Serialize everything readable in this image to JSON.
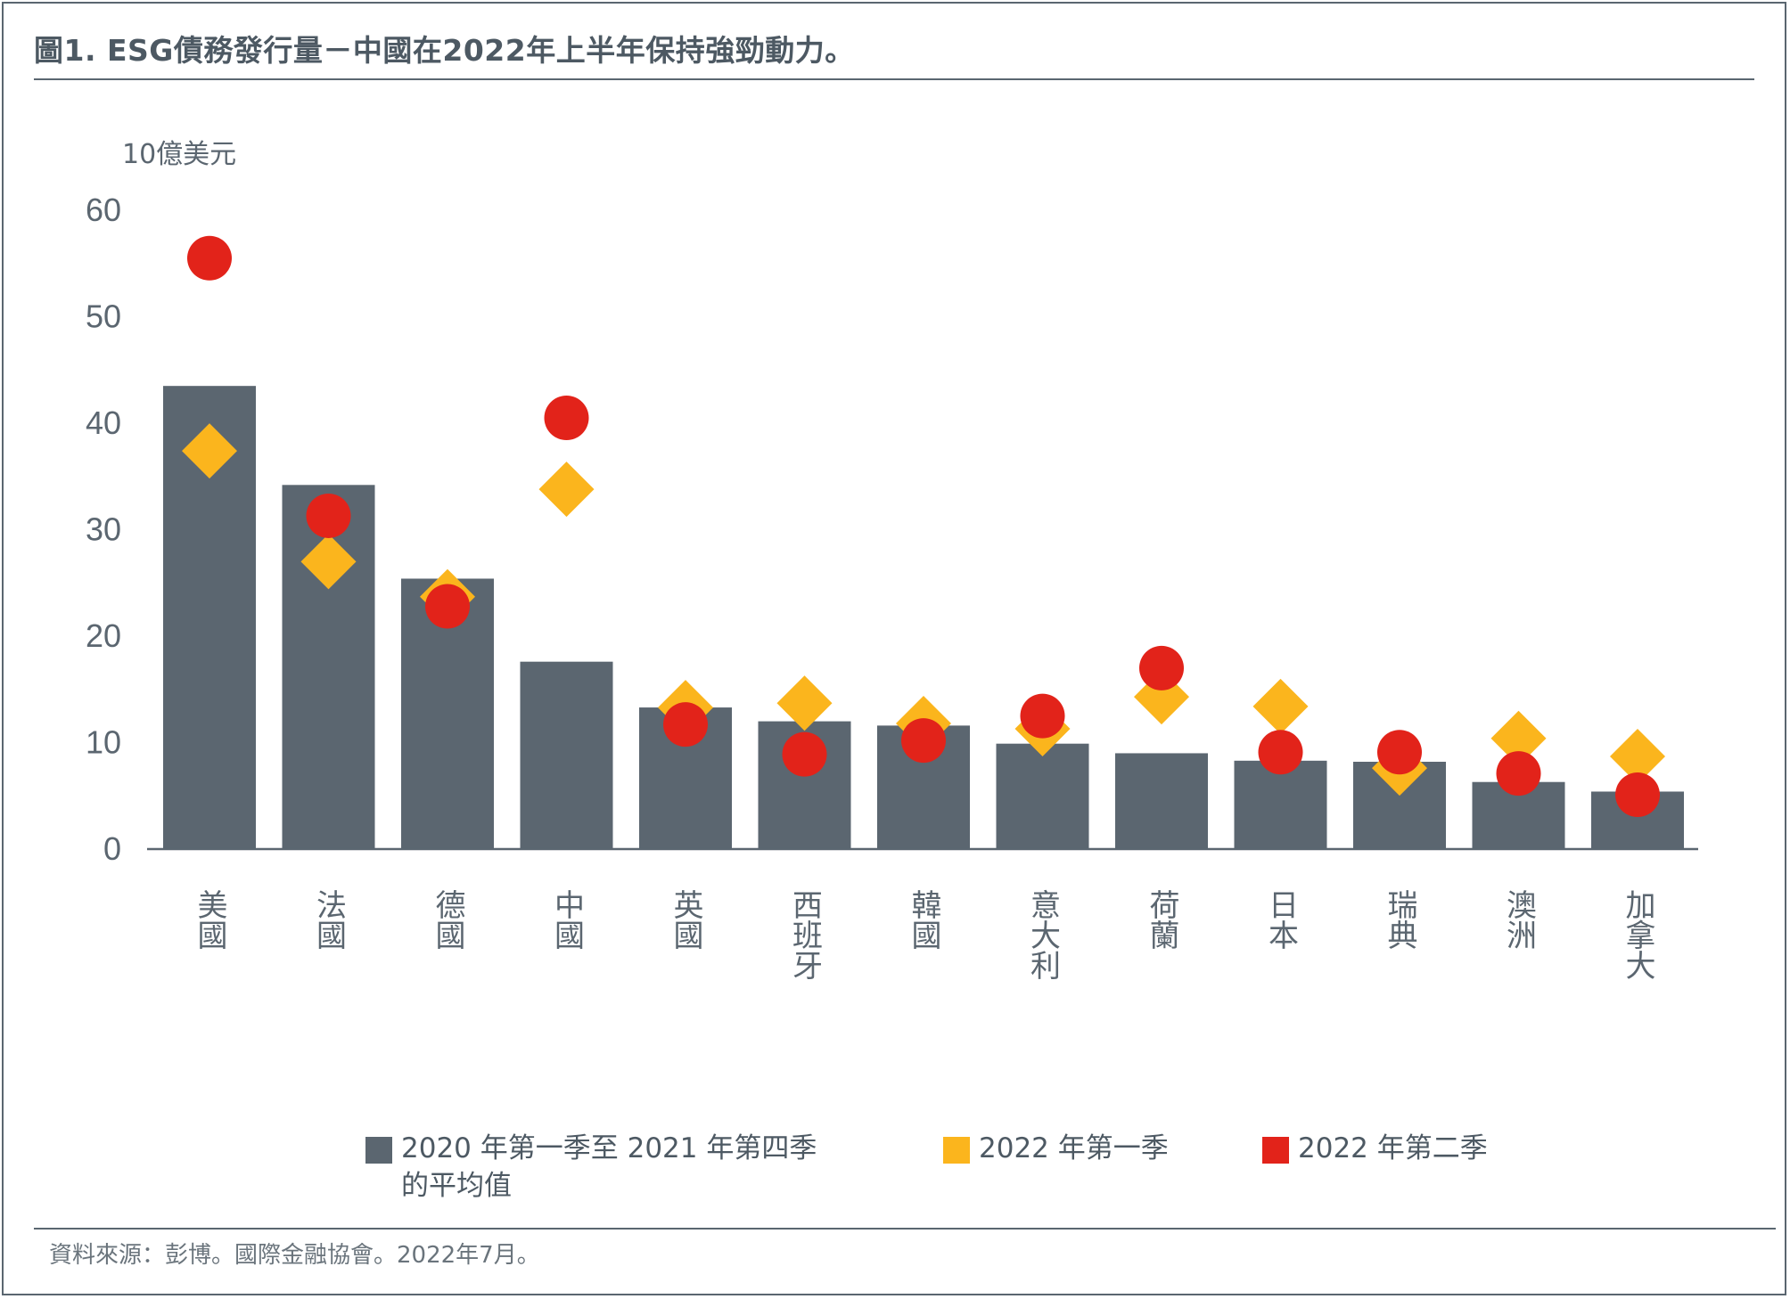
{
  "title": "圖1. ESG債務發行量－中國在2022年上半年保持強勁動力。",
  "source": "資料來源：彭博。國際金融協會。2022年7月。",
  "colors": {
    "bar": "#5b6670",
    "q1_2022": "#fbb51d",
    "q2_2022": "#e2231a",
    "axis": "#5b6670",
    "text": "#5b6670"
  },
  "legend": {
    "bar_label": "2020 年第一季至 2021 年第四季\n的平均值",
    "q1_label": "2022 年第一季",
    "q2_label": "2022 年第二季"
  },
  "chart_data": {
    "type": "bar",
    "ylabel": "10億美元",
    "ylim": [
      0,
      60
    ],
    "yticks": [
      0,
      10,
      20,
      30,
      40,
      50,
      60
    ],
    "grid": false,
    "legend_position": "bottom",
    "categories": [
      "美國",
      "法國",
      "德國",
      "中國",
      "英國",
      "西班牙",
      "韓國",
      "意大利",
      "荷蘭",
      "日本",
      "瑞典",
      "澳洲",
      "加拿大"
    ],
    "series": [
      {
        "name": "2020 年第一季至 2021 年第四季的平均值",
        "kind": "bar",
        "marker": "bar",
        "values": [
          43.5,
          34.2,
          25.4,
          17.6,
          13.3,
          12.0,
          11.6,
          9.9,
          9.0,
          8.3,
          8.2,
          6.3,
          5.4
        ]
      },
      {
        "name": "2022 年第一季",
        "kind": "point",
        "marker": "diamond",
        "values": [
          37.4,
          27.0,
          23.7,
          33.8,
          13.3,
          13.7,
          11.8,
          11.3,
          14.3,
          13.4,
          7.6,
          10.4,
          8.7
        ]
      },
      {
        "name": "2022 年第二季",
        "kind": "point",
        "marker": "circle",
        "values": [
          55.5,
          31.3,
          22.8,
          40.5,
          11.7,
          8.9,
          10.2,
          12.5,
          17.0,
          9.1,
          9.1,
          7.1,
          5.1
        ]
      }
    ]
  }
}
